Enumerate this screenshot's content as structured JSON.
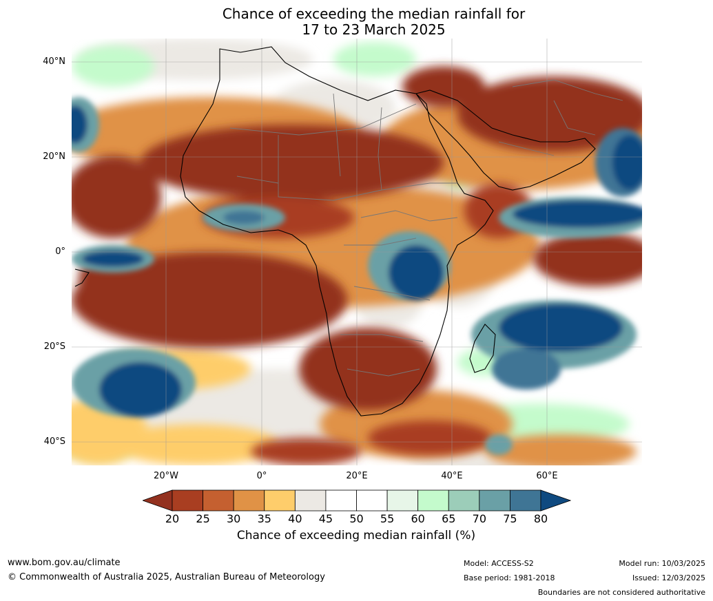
{
  "title_line1": "Chance of exceeding the median rainfall for",
  "title_line2": "17 to 23 March 2025",
  "lat_labels": [
    "40°N",
    "20°N",
    "0°",
    "20°S",
    "40°S"
  ],
  "lon_labels": [
    "20°W",
    "0°",
    "20°E",
    "40°E",
    "60°E"
  ],
  "colorbar": {
    "ticks": [
      "20",
      "25",
      "30",
      "35",
      "40",
      "45",
      "50",
      "55",
      "60",
      "65",
      "70",
      "75",
      "80"
    ],
    "colors": [
      "#93311f",
      "#a93e21",
      "#c56030",
      "#e09246",
      "#fecd6b",
      "#ece9e4",
      "#ffffff",
      "#ffffff",
      "#e7f6e8",
      "#c4fbcc",
      "#9ccdb9",
      "#6aa0a6",
      "#3f7595",
      "#0f4a80"
    ],
    "label": "Chance of exceeding median rainfall (%)"
  },
  "footer": {
    "website": "www.bom.gov.au/climate",
    "copyright": "© Commonwealth of Australia 2025, Australian Bureau of Meteorology",
    "model": "Model: ACCESS-S2",
    "base_period": "Base period: 1981-2018",
    "model_run": "Model run: 10/03/2025",
    "issued": "Issued: 12/03/2025",
    "disclaimer": "Boundaries are not considered authoritative"
  }
}
